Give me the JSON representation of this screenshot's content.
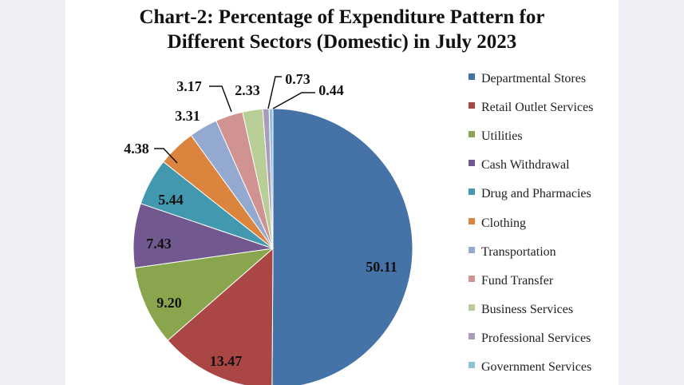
{
  "chart_data": {
    "type": "pie",
    "title": "Chart-2: Percentage of Expenditure Pattern for Different Sectors (Domestic) in July 2023",
    "title_lines": [
      "Chart-2: Percentage of Expenditure Pattern for",
      "Different Sectors (Domestic) in July 2023"
    ],
    "legend_position": "right",
    "start": "12 o'clock, clockwise",
    "slices": [
      {
        "name": "Departmental Stores",
        "value": 50.11,
        "label": "50.11",
        "color": "#4572a7"
      },
      {
        "name": "Retail Outlet Services",
        "value": 13.47,
        "label": "13.47",
        "color": "#aa4643"
      },
      {
        "name": "Utilities",
        "value": 9.2,
        "label": "9.20",
        "color": "#89a54e"
      },
      {
        "name": "Cash Withdrawal",
        "value": 7.43,
        "label": "7.43",
        "color": "#71588f"
      },
      {
        "name": "Drug and Pharmacies",
        "value": 5.44,
        "label": "5.44",
        "color": "#4198af"
      },
      {
        "name": "Clothing",
        "value": 4.38,
        "label": "4.38",
        "color": "#db843d"
      },
      {
        "name": "Transportation",
        "value": 3.31,
        "label": "3.31",
        "color": "#93a9cf"
      },
      {
        "name": "Fund Transfer",
        "value": 3.17,
        "label": "3.17",
        "color": "#d19392"
      },
      {
        "name": "Business Services",
        "value": 2.33,
        "label": "2.33",
        "color": "#b9cd96"
      },
      {
        "name": "Professional Services",
        "value": 0.73,
        "label": "0.73",
        "color": "#a99bbd"
      },
      {
        "name": "Government Services",
        "value": 0.44,
        "label": "0.44",
        "color": "#91c3d5"
      }
    ]
  }
}
